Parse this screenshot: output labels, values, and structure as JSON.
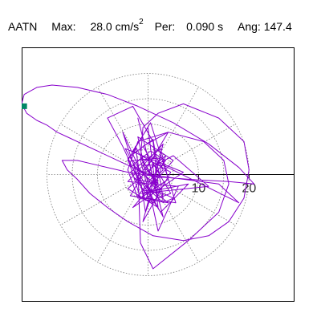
{
  "header": {
    "component": "AATN",
    "max_label": "Max:",
    "max_value": "28.0 cm/s",
    "max_exp": "2",
    "per_label": "Per:",
    "per_value": "0.090 s",
    "ang_label": "Ang:",
    "ang_value": "147.4"
  },
  "chart_data": {
    "type": "line",
    "subtype": "polar-orbit",
    "title": "",
    "xlabel": "",
    "ylabel": "",
    "xlim": [
      -25,
      29
    ],
    "ylim": [
      -27,
      27
    ],
    "ticks": [
      {
        "value": 10,
        "label": "10"
      },
      {
        "value": 20,
        "label": "20"
      }
    ],
    "rings": [
      5,
      10,
      15,
      20
    ],
    "spokes_deg": [
      0,
      30,
      60,
      90,
      120,
      150,
      180,
      210,
      240,
      270,
      300,
      330
    ],
    "grid": true,
    "colors": {
      "trace": "#8800cc",
      "marker": "#008866",
      "grid": "#777777",
      "axis": "#000000"
    },
    "orbit": [
      [
        0,
        0
      ],
      [
        1.2,
        2.5
      ],
      [
        -1.5,
        3.5
      ],
      [
        2,
        -2
      ],
      [
        -2.5,
        -1
      ],
      [
        1.5,
        4
      ],
      [
        3,
        1
      ],
      [
        -1,
        -3.5
      ],
      [
        2.5,
        -3
      ],
      [
        -3,
        2
      ],
      [
        0.5,
        5
      ],
      [
        3.5,
        3
      ],
      [
        -2,
        -4.5
      ],
      [
        1,
        -6
      ],
      [
        -3.5,
        0.5
      ],
      [
        2.5,
        5.5
      ],
      [
        4,
        -1
      ],
      [
        -1.5,
        -5
      ],
      [
        -4,
        3.5
      ],
      [
        1,
        7.5
      ],
      [
        3,
        -5
      ],
      [
        -2.5,
        6
      ],
      [
        -0.5,
        -8
      ],
      [
        3.5,
        4
      ],
      [
        -4,
        -3
      ],
      [
        2,
        -7
      ],
      [
        0,
        10
      ],
      [
        -3,
        5
      ],
      [
        4.5,
        0.5
      ],
      [
        -1,
        -10
      ],
      [
        3,
        6.5
      ],
      [
        -4,
        -1.5
      ],
      [
        6,
        -2.5
      ],
      [
        2,
        -12
      ],
      [
        -2,
        8
      ],
      [
        5,
        3
      ],
      [
        -3,
        -7
      ],
      [
        7,
        0.5
      ],
      [
        -4.5,
        5.5
      ],
      [
        3,
        -9
      ],
      [
        -2,
        12
      ],
      [
        2,
        -5
      ],
      [
        4.5,
        -4
      ],
      [
        -1,
        6
      ],
      [
        4,
        9
      ],
      [
        -3.5,
        -4.5
      ],
      [
        5.5,
        -6
      ],
      [
        0.5,
        11
      ],
      [
        -4,
        3
      ],
      [
        2.5,
        -8
      ],
      [
        8,
        -2
      ],
      [
        -1.5,
        -4
      ],
      [
        12,
        -2.5
      ],
      [
        5,
        4
      ],
      [
        1.5,
        2
      ],
      [
        1.5,
        -3
      ],
      [
        -3,
        3
      ],
      [
        2.5,
        3.5
      ],
      [
        -0.5,
        -5.5
      ],
      [
        -5,
        9
      ],
      [
        -2,
        2
      ],
      [
        -1.5,
        -14.5
      ],
      [
        1,
        -20
      ],
      [
        8,
        -14
      ],
      [
        14,
        -8
      ],
      [
        16,
        -2
      ],
      [
        15,
        3
      ],
      [
        11,
        7
      ],
      [
        4,
        9
      ],
      [
        -2,
        7
      ],
      [
        -4,
        1
      ],
      [
        -2,
        -5
      ],
      [
        4,
        -6
      ],
      [
        -2,
        -1
      ],
      [
        -5,
        6
      ],
      [
        -8,
        12
      ],
      [
        -3,
        14.5
      ],
      [
        1,
        7
      ],
      [
        2,
        -2
      ],
      [
        -1,
        2
      ],
      [
        3,
        2
      ],
      [
        18,
        -6
      ],
      [
        14,
        -2
      ],
      [
        0,
        0
      ],
      [
        -6,
        3
      ],
      [
        -12,
        6
      ],
      [
        -16,
        8
      ],
      [
        -18,
        9
      ],
      [
        -20,
        10.5
      ],
      [
        -22,
        11.5
      ],
      [
        -24,
        13
      ],
      [
        -25,
        15
      ],
      [
        -24.5,
        17
      ],
      [
        -22,
        18.5
      ],
      [
        -19,
        19
      ],
      [
        -14,
        18.5
      ],
      [
        -8,
        17
      ],
      [
        -2,
        14.5
      ],
      [
        5,
        11
      ],
      [
        12,
        6.5
      ],
      [
        18,
        1.5
      ],
      [
        21,
        -2
      ],
      [
        16,
        -1.5
      ],
      [
        8,
        -1
      ],
      [
        2,
        -0.5
      ],
      [
        -4,
        0.5
      ],
      [
        -10,
        2
      ],
      [
        -14,
        3
      ],
      [
        -17,
        3
      ],
      [
        -16,
        1
      ],
      [
        -14,
        -1
      ],
      [
        -11.5,
        -4
      ],
      [
        -8,
        -7
      ],
      [
        -4,
        -10
      ],
      [
        1,
        -13
      ],
      [
        7,
        -14
      ],
      [
        12,
        -13
      ],
      [
        16,
        -10
      ],
      [
        19,
        -5
      ],
      [
        20,
        1
      ],
      [
        19,
        7
      ],
      [
        14,
        12
      ],
      [
        7,
        15
      ],
      [
        2,
        13
      ],
      [
        -1,
        10
      ],
      [
        -1.5,
        3
      ],
      [
        0,
        -3
      ],
      [
        3,
        -6
      ],
      [
        5,
        -5
      ],
      [
        3,
        -4
      ],
      [
        0.5,
        -3.5
      ]
    ],
    "start_marker": {
      "x": -24.5,
      "y": 14.5
    }
  }
}
